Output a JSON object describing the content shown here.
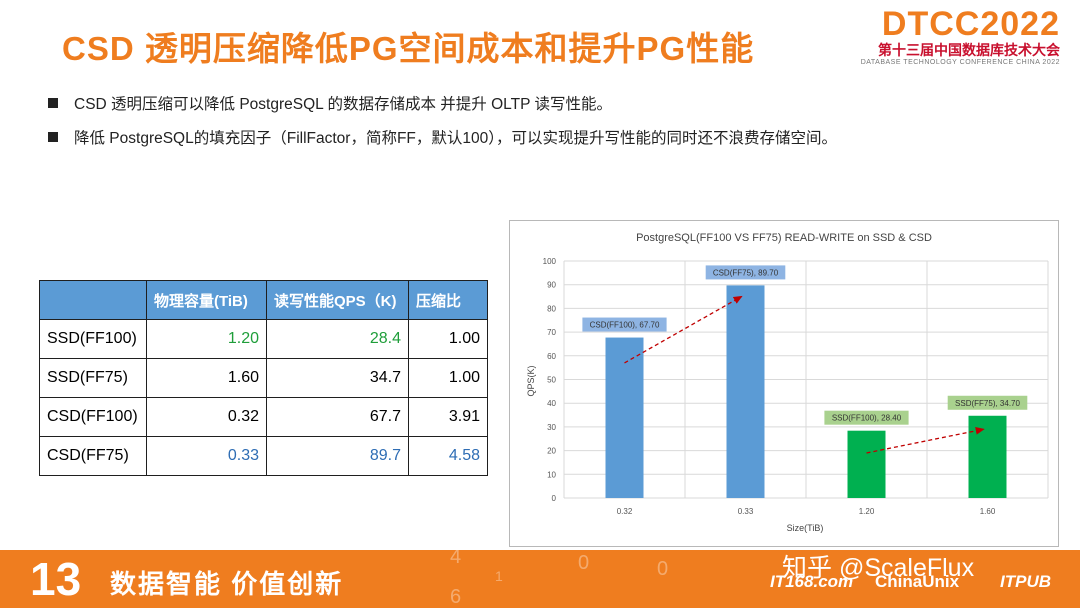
{
  "header": {
    "title": "CSD 透明压缩降低PG空间成本和提升PG性能",
    "logo_main": "DTCC2022",
    "logo_sub": "第十三届中国数据库技术大会",
    "logo_sub_en": "DATABASE TECHNOLOGY CONFERENCE CHINA 2022"
  },
  "bullets": [
    "CSD 透明压缩可以降低 PostgreSQL 的数据存储成本 并提升 OLTP 读写性能。",
    "降低 PostgreSQL的填充因子（FillFactor，简称FF，默认100），可以实现提升写性能的同时还不浪费存储空间。"
  ],
  "table": {
    "headers": [
      "",
      "物理容量(TiB)",
      "读写性能QPS（K)",
      "压缩比"
    ],
    "rows": [
      [
        "SSD(FF100)",
        "1.20",
        "28.4",
        "1.00"
      ],
      [
        "SSD(FF75)",
        "1.60",
        "34.7",
        "1.00"
      ],
      [
        "CSD(FF100)",
        "0.32",
        "67.7",
        "3.91"
      ],
      [
        "CSD(FF75)",
        "0.33",
        "89.7",
        "4.58"
      ]
    ],
    "colors": {
      "green": "#1f9e3a",
      "blue": "#2e6db4",
      "header_bg": "#5b9bd5"
    }
  },
  "chart_data": {
    "type": "bar",
    "title": "PostgreSQL(FF100 VS FF75) READ-WRITE on SSD & CSD",
    "xlabel": "Size(TiB)",
    "ylabel": "QPS(K)",
    "categories": [
      "0.32",
      "0.33",
      "1.20",
      "1.60"
    ],
    "values": [
      67.7,
      89.7,
      28.4,
      34.7
    ],
    "bar_colors": [
      "#5b9bd5",
      "#5b9bd5",
      "#00b050",
      "#00b050"
    ],
    "data_labels": [
      "CSD(FF100), 67.70",
      "CSD(FF75), 89.70",
      "SSD(FF100), 28.40",
      "SSD(FF75), 34.70"
    ],
    "label_colors": [
      "#8eb4e3",
      "#8eb4e3",
      "#a9d18e",
      "#a9d18e"
    ],
    "ylim": [
      0,
      100
    ],
    "yticks": [
      0,
      10,
      20,
      30,
      40,
      50,
      60,
      70,
      80,
      90,
      100
    ],
    "grid": true,
    "arrows": [
      {
        "from": [
          0,
          57
        ],
        "to": [
          1,
          85
        ]
      },
      {
        "from": [
          2,
          19
        ],
        "to": [
          3,
          29
        ]
      }
    ],
    "arrow_color": "#c00000"
  },
  "footer": {
    "number": "13",
    "slogan": "数据智能  价值创新",
    "partners": [
      "IT168.com",
      "ChinaUnix",
      "ITPUB"
    ]
  },
  "watermark": "知乎 @ScaleFlux"
}
